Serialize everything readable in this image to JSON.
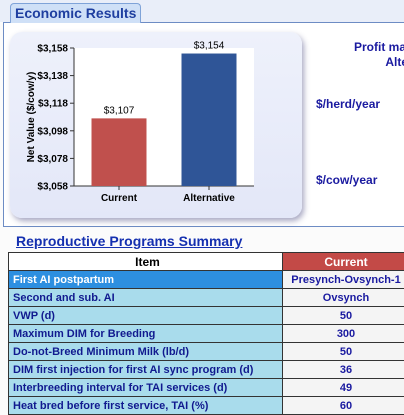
{
  "section_title": "Economic Results",
  "chart_data": {
    "type": "bar",
    "categories": [
      "Current",
      "Alternative"
    ],
    "values": [
      3107,
      3154
    ],
    "data_labels": [
      "$3,107",
      "$3,154"
    ],
    "ylabel": "Net Value ($/cow/y)",
    "ylim": [
      3058,
      3158
    ],
    "yticks": [
      3058,
      3078,
      3098,
      3118,
      3138,
      3158
    ],
    "ytick_labels": [
      "$3,058",
      "$3,078",
      "$3,098",
      "$3,118",
      "$3,138",
      "$3,158"
    ],
    "colors": [
      "#c0504d",
      "#2f5597"
    ],
    "grid": false
  },
  "profit": {
    "title_line1": "Profit made",
    "title_line2": "Altern",
    "herd_label": "$/herd/year",
    "cow_label": "$/cow/year"
  },
  "summary": {
    "title": "Reproductive Programs Summary",
    "headers": {
      "item": "Item",
      "current": "Current"
    },
    "rows": [
      {
        "item": "First AI postpartum",
        "current": "Presynch-Ovsynch-1"
      },
      {
        "item": "Second and sub. AI",
        "current": "Ovsynch"
      },
      {
        "item": "VWP (d)",
        "current": "50"
      },
      {
        "item": "Maximum DIM for Breeding",
        "current": "300"
      },
      {
        "item": "Do-not-Breed Minimum Milk (lb/d)",
        "current": "50"
      },
      {
        "item": "DIM first injection for first AI sync program (d)",
        "current": "36"
      },
      {
        "item": "Interbreeding interval for TAI services (d)",
        "current": "49"
      },
      {
        "item": "Heat bred before first service, TAI (%)",
        "current": "60"
      }
    ]
  }
}
